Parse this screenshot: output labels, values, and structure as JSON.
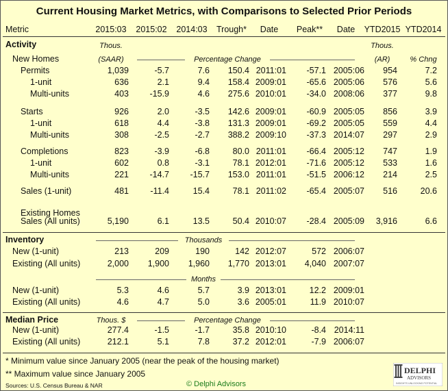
{
  "title": "Current Housing Market Metrics, with Comparisons to Selected Prior Periods",
  "headers": [
    "Metric",
    "2015:03",
    "2015:02",
    "2014:03",
    "Trough*",
    "Date",
    "Peak**",
    "Date",
    "YTD2015",
    "YTD2014"
  ],
  "sections": {
    "activity": "Activity",
    "new_homes": "New Homes",
    "existing_homes": "Existing Homes",
    "inventory": "Inventory",
    "median_price": "Median Price"
  },
  "units": {
    "thous_saar_1": "Thous.",
    "thous_saar_2": "(SAAR)",
    "pct_change": "Percentage Change",
    "thous_ar_1": "Thous.",
    "thous_ar_2": "(AR)",
    "pct_chng": "% Chng",
    "thousands": "Thousands",
    "months": "Months",
    "thous_dollar": "Thous. $",
    "pct_change_2": "Percentage Change"
  },
  "rows": [
    {
      "label": "Permits",
      "cells": [
        "1,039",
        "-5.7",
        "7.6",
        "150.4",
        "2011:01",
        "-57.1",
        "2005:06",
        "954",
        "7.2"
      ]
    },
    {
      "label": "1-unit",
      "cells": [
        "636",
        "2.1",
        "9.4",
        "158.4",
        "2009:01",
        "-65.6",
        "2005:06",
        "576",
        "5.6"
      ]
    },
    {
      "label": "Multi-units",
      "cells": [
        "403",
        "-15.9",
        "4.6",
        "275.6",
        "2010:01",
        "-34.0",
        "2008:06",
        "377",
        "9.8"
      ]
    },
    {
      "label": "Starts",
      "cells": [
        "926",
        "2.0",
        "-3.5",
        "142.6",
        "2009:01",
        "-60.9",
        "2005:05",
        "856",
        "3.9"
      ]
    },
    {
      "label": "1-unit",
      "cells": [
        "618",
        "4.4",
        "-3.8",
        "131.3",
        "2009:01",
        "-69.2",
        "2005:05",
        "559",
        "4.4"
      ]
    },
    {
      "label": "Multi-units",
      "cells": [
        "308",
        "-2.5",
        "-2.7",
        "388.2",
        "2009:10",
        "-37.3",
        "2014:07",
        "297",
        "2.9"
      ]
    },
    {
      "label": "Completions",
      "cells": [
        "823",
        "-3.9",
        "-6.8",
        "80.0",
        "2011:01",
        "-66.4",
        "2005:12",
        "747",
        "1.9"
      ]
    },
    {
      "label": "1-unit",
      "cells": [
        "602",
        "0.8",
        "-3.1",
        "78.1",
        "2012:01",
        "-71.6",
        "2005:12",
        "533",
        "1.6"
      ]
    },
    {
      "label": "Multi-units",
      "cells": [
        "221",
        "-14.7",
        "-15.7",
        "153.0",
        "2011:01",
        "-51.5",
        "2006:12",
        "214",
        "2.5"
      ]
    },
    {
      "label": "Sales (1-unit)",
      "cells": [
        "481",
        "-11.4",
        "15.4",
        "78.1",
        "2011:02",
        "-65.4",
        "2005:07",
        "516",
        "20.6"
      ]
    },
    {
      "label": "Sales (All units)",
      "cells": [
        "5,190",
        "6.1",
        "13.5",
        "50.4",
        "2010:07",
        "-28.4",
        "2005:09",
        "3,916",
        "6.6"
      ]
    },
    {
      "label": "New (1-unit)",
      "cells": [
        "213",
        "209",
        "190",
        "142",
        "2012:07",
        "572",
        "2006:07",
        "",
        ""
      ]
    },
    {
      "label": "Existing (All units)",
      "cells": [
        "2,000",
        "1,900",
        "1,960",
        "1,770",
        "2013:01",
        "4,040",
        "2007:07",
        "",
        ""
      ]
    },
    {
      "label": "New (1-unit)",
      "cells": [
        "5.3",
        "4.6",
        "5.7",
        "3.9",
        "2013:01",
        "12.2",
        "2009:01",
        "",
        ""
      ]
    },
    {
      "label": "Existing (All units)",
      "cells": [
        "4.6",
        "4.7",
        "5.0",
        "3.6",
        "2005:01",
        "11.9",
        "2010:07",
        "",
        ""
      ]
    },
    {
      "label": "New (1-unit)",
      "cells": [
        "277.4",
        "-1.5",
        "-1.7",
        "35.8",
        "2010:10",
        "-8.4",
        "2014:11",
        "",
        ""
      ]
    },
    {
      "label": "Existing (All units)",
      "cells": [
        "212.1",
        "5.1",
        "7.8",
        "37.2",
        "2012:01",
        "-7.9",
        "2006:07",
        "",
        ""
      ]
    }
  ],
  "footnotes": {
    "trough": "*  Minimum value since January 2005 (near the peak of the housing market)",
    "peak": "** Maximum value since January 2005",
    "sources": "Sources: U.S. Census Bureau & NAR",
    "copyright": "© Delphi Advisors"
  },
  "logo": {
    "text": "DELPHI",
    "sub": "ADVISORS",
    "tagline": "INSIGHTS UNLOCKING POTENTIAL"
  },
  "colors": {
    "background": "#ffffcc",
    "copyright": "#1a7a1a",
    "text": "#111111"
  }
}
